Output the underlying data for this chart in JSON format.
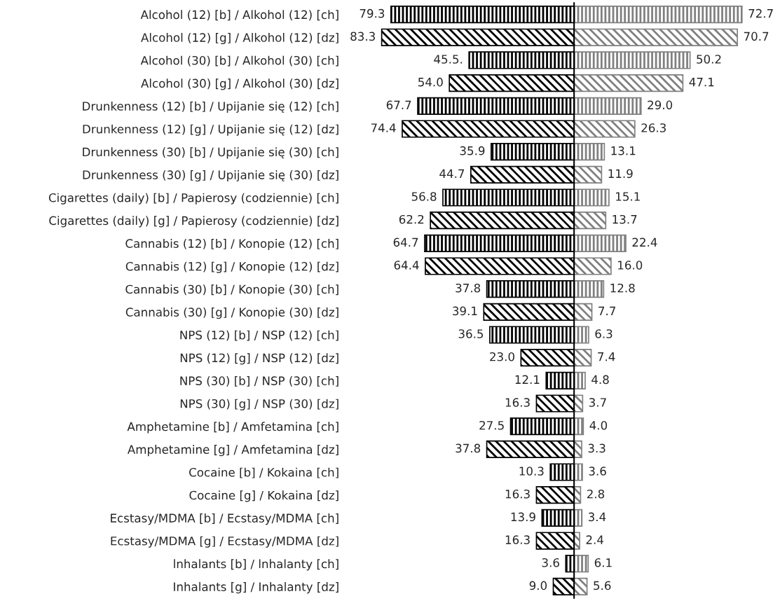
{
  "chart_data": [
    {
      "type": "bar",
      "orientation": "horizontal",
      "categories": [
        "Alcohol (12) [b] / Alkohol (12) [ch]",
        "Alcohol (12) [g] / Alkohol (12) [dz]",
        "Alcohol (30) [b] / Alkohol (30) [ch]",
        "Alcohol (30) [g] / Alkohol (30) [dz]",
        "Drunkenness (12) [b] / Upijanie się (12) [ch]",
        "Drunkenness (12) [g] / Upijanie się (12) [dz]",
        "Drunkenness (30) [b] / Upijanie się (30) [ch]",
        "Drunkenness (30) [g] / Upijanie się (30) [dz]",
        "Cigarettes (daily) [b] / Papierosy (codziennie) [ch]",
        "Cigarettes (daily) [g] / Papierosy (codziennie) [dz]",
        "Cannabis (12) [b] / Konopie (12) [ch]",
        "Cannabis (12) [g] / Konopie (12) [dz]",
        "Cannabis (30) [b] / Konopie (30) [ch]",
        "Cannabis (30) [g] / Konopie (30) [dz]",
        "NPS (12) [b] / NSP (12) [ch]",
        "NPS (12) [g] / NSP (12) [dz]",
        "NPS (30) [b] / NSP (30) [ch]",
        "NPS (30) [g] / NSP (30) [dz]",
        "Amphetamine [b] / Amfetamina [ch]",
        "Amphetamine [g] / Amfetamina [dz]",
        "Cocaine [b] / Kokaina [ch]",
        "Cocaine [g] / Kokaina [dz]",
        "Ecstasy/MDMA [b] / Ecstasy/MDMA [ch]",
        "Ecstasy/MDMA [g] / Ecstasy/MDMA [dz]",
        "lnhalants [b] / lnhalanty [ch]",
        "Inhalants [g] / Inhalanty [dz]"
      ],
      "series": [
        {
          "color": "#000000",
          "values": [
            79.3,
            83.3,
            45.5,
            54.0,
            67.7,
            74.4,
            35.9,
            44.7,
            56.8,
            62.2,
            64.7,
            64.4,
            37.8,
            39.1,
            36.5,
            23.0,
            12.1,
            16.3,
            27.5,
            37.8,
            10.3,
            16.3,
            13.9,
            16.3,
            3.6,
            9.0
          ],
          "value_labels": [
            "79.3",
            "83.3",
            "45.5.",
            "54.0",
            "67.7",
            "74.4",
            "35.9",
            "44.7",
            "56.8",
            "62.2",
            "64.7",
            "64.4",
            "37.8",
            "39.1",
            "36.5",
            "23.0",
            "12.1",
            "16.3",
            "27.5",
            "37.8",
            "10.3",
            "16.3",
            "13.9",
            "16.3",
            "3.6",
            "9.0"
          ]
        }
      ],
      "tick_labels": "y"
    },
    {
      "type": "bar",
      "orientation": "horizontal",
      "categories": [
        null,
        null,
        null,
        null,
        null,
        null,
        null,
        null,
        null,
        null,
        null,
        null,
        null,
        null,
        null,
        null,
        null,
        null,
        null,
        null,
        null,
        null,
        null,
        null,
        null,
        null
      ],
      "series": [
        {
          "color": "#808080",
          "values": [
            72.7,
            70.7,
            50.2,
            47.1,
            29.0,
            26.3,
            13.1,
            11.9,
            15.1,
            13.7,
            22.4,
            16.0,
            12.8,
            7.7,
            6.3,
            7.4,
            4.8,
            3.7,
            4.0,
            3.3,
            3.6,
            2.8,
            3.4,
            2.4,
            6.1,
            5.6
          ],
          "value_labels": [
            "72.7",
            "70.7",
            "50.2",
            "47.1",
            "29.0",
            "26.3",
            "13.1",
            "11.9",
            "15.1",
            "13.7",
            "22.4",
            "16.0",
            "12.8",
            "7.7",
            "6.3",
            "7.4",
            "4.8",
            "3.7",
            "4.0",
            "3.3",
            "3.6",
            "2.8",
            "3.4",
            "2.4",
            "6.1",
            "5.6"
          ]
        }
      ],
      "tick_labels": false
    }
  ]
}
